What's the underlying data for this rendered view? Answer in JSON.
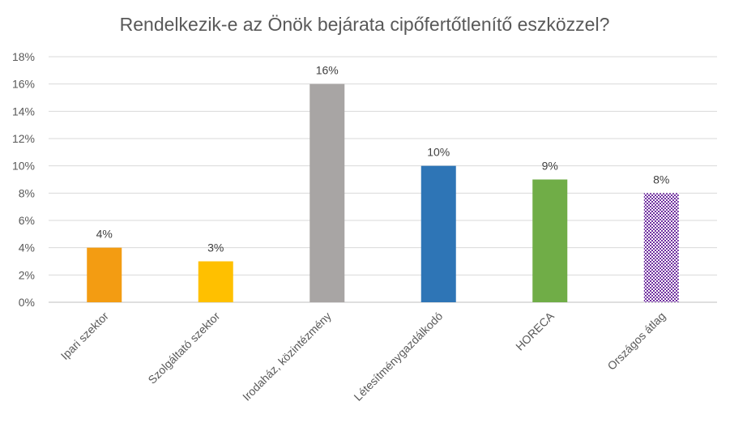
{
  "chart_data": {
    "type": "bar",
    "title": "Rendelkezik-e az Önök bejárata cipőfertőtlenítő eszközzel?",
    "categories": [
      "Ipari szektor",
      "Szolgáltató szektor",
      "Irodaház, közintézmény",
      "Létesítménygazdálkodó",
      "HORECA",
      "Országos átlag"
    ],
    "values": [
      4,
      3,
      16,
      10,
      9,
      8
    ],
    "data_labels": [
      "4%",
      "3%",
      "16%",
      "10%",
      "9%",
      "8%"
    ],
    "colors": [
      "#f39c12",
      "#ffc000",
      "#a8a5a4",
      "#2e75b6",
      "#70ad47",
      "#7030a0"
    ],
    "patterns": [
      "solid",
      "solid",
      "solid",
      "solid",
      "solid",
      "checkered"
    ],
    "ylim": [
      0,
      18
    ],
    "y_ticks": [
      "0%",
      "2%",
      "4%",
      "6%",
      "8%",
      "10%",
      "12%",
      "14%",
      "16%",
      "18%"
    ],
    "grid": true,
    "legend": "none"
  }
}
